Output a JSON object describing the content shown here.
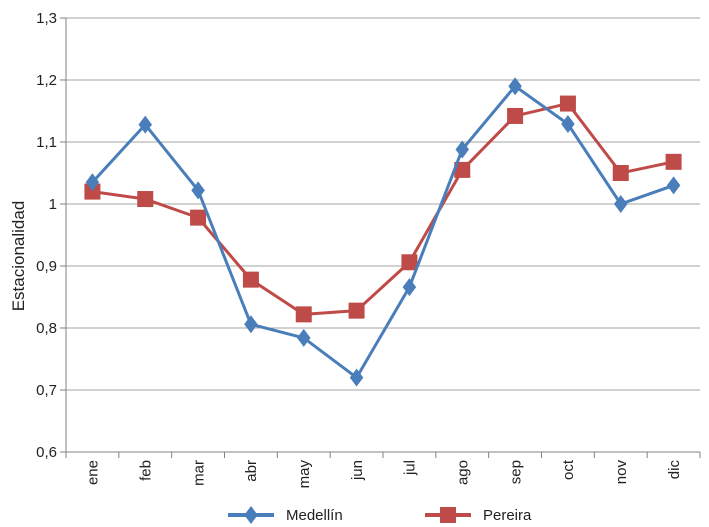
{
  "chart_data": {
    "type": "line",
    "categories": [
      "ene",
      "feb",
      "mar",
      "abr",
      "may",
      "jun",
      "jul",
      "ago",
      "sep",
      "oct",
      "nov",
      "dic"
    ],
    "series": [
      {
        "name": "Medellín",
        "color": "#4a7ebb",
        "marker": "diamond",
        "values": [
          1.035,
          1.128,
          1.022,
          0.806,
          0.784,
          0.72,
          0.866,
          1.088,
          1.19,
          1.129,
          1.0,
          1.03
        ]
      },
      {
        "name": "Pereira",
        "color": "#be4b48",
        "marker": "square",
        "values": [
          1.02,
          1.008,
          0.978,
          0.878,
          0.822,
          0.828,
          0.906,
          1.055,
          1.142,
          1.162,
          1.05,
          1.068
        ]
      }
    ],
    "ylabel": "Estacionalidad",
    "ylim": [
      0.6,
      1.3
    ],
    "yticks": [
      "0,6",
      "0,7",
      "0,8",
      "0,9",
      "1",
      "1,1",
      "1,2",
      "1,3"
    ],
    "grid": "horizontal",
    "legend": "bottom"
  }
}
